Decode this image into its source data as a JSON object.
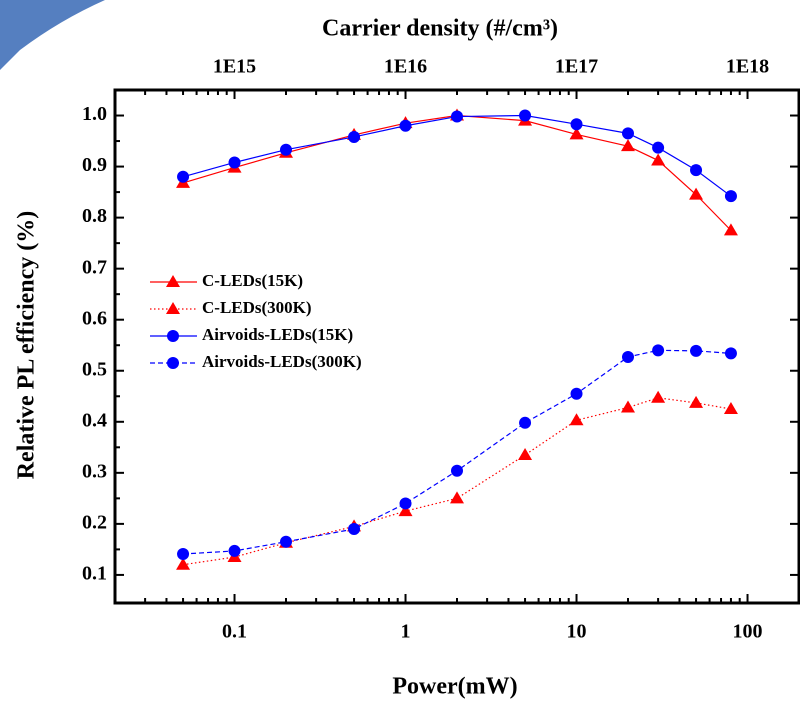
{
  "chart_data": {
    "type": "line",
    "x_label": "Power(mW)",
    "y_label": "Relative PL efficiency (%)",
    "x2_label": "Carrier density (#/cm³)",
    "x": [
      0.05,
      0.1,
      0.2,
      0.5,
      1,
      2,
      5,
      10,
      20,
      30,
      50,
      80
    ],
    "series": [
      {
        "name": "C-LEDs(15K)",
        "color": "#ff0000",
        "marker": "triangle",
        "dash": "solid",
        "values": [
          0.868,
          0.898,
          0.927,
          0.962,
          0.985,
          1.0,
          0.99,
          0.963,
          0.94,
          0.912,
          0.845,
          0.775
        ]
      },
      {
        "name": "C-LEDs(300K)",
        "color": "#ff0000",
        "marker": "triangle",
        "dash": "dotted",
        "values": [
          0.12,
          0.135,
          0.163,
          0.195,
          0.225,
          0.25,
          0.335,
          0.403,
          0.428,
          0.447,
          0.437,
          0.425
        ]
      },
      {
        "name": "Airvoids-LEDs(15K)",
        "color": "#0000ff",
        "marker": "circle",
        "dash": "solid",
        "values": [
          0.88,
          0.908,
          0.933,
          0.958,
          0.98,
          0.998,
          1.0,
          0.983,
          0.965,
          0.937,
          0.893,
          0.842
        ]
      },
      {
        "name": "Airvoids-LEDs(300K)",
        "color": "#0000ff",
        "marker": "circle",
        "dash": "dashed",
        "values": [
          0.141,
          0.147,
          0.165,
          0.19,
          0.24,
          0.304,
          0.398,
          0.455,
          0.527,
          0.54,
          0.539,
          0.534
        ]
      }
    ],
    "xlog": true,
    "xlim": [
      0.02,
      200
    ],
    "xticks": [
      0.1,
      1,
      10,
      100
    ],
    "x2lim": [
      200000000000000.0,
      2e+18
    ],
    "x2ticks": [
      {
        "value": 1000000000000000.0,
        "label": "1E15"
      },
      {
        "value": 1e+16,
        "label": "1E16"
      },
      {
        "value": 1e+17,
        "label": "1E17"
      },
      {
        "value": 1e+18,
        "label": "1E18"
      }
    ],
    "ylim": [
      0.045,
      1.05
    ],
    "yticks": [
      0.1,
      0.2,
      0.3,
      0.4,
      0.5,
      0.6,
      0.7,
      0.8,
      0.9,
      {
        "value": 1.0,
        "label": "1.0"
      }
    ],
    "legend": "left"
  }
}
